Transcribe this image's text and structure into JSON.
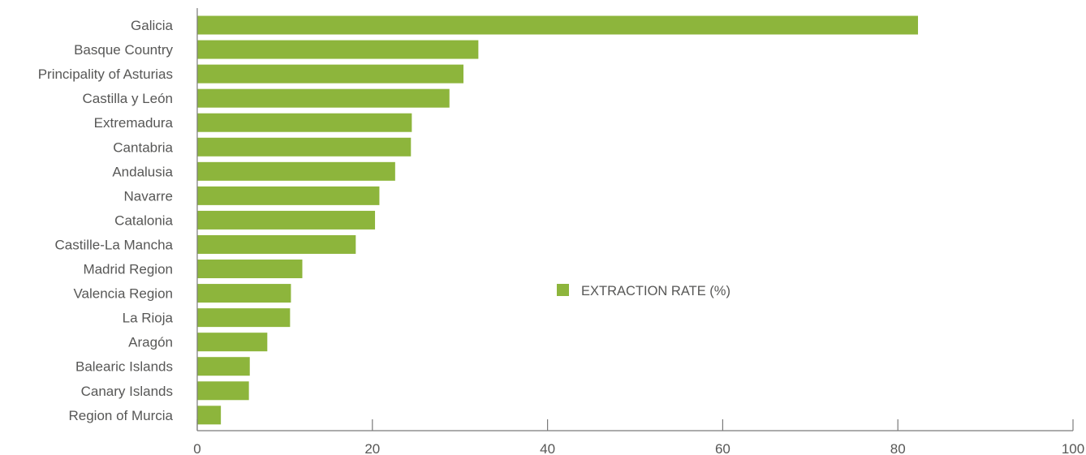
{
  "chart_data": {
    "type": "bar",
    "orientation": "horizontal",
    "categories": [
      "Galicia",
      "Basque Country",
      "Principality of Asturias",
      "Castilla y León",
      "Extremadura",
      "Cantabria",
      "Andalusia",
      "Navarre",
      "Catalonia",
      "Castille-La Mancha",
      "Madrid Region",
      "Valencia Region",
      "La Rioja",
      "Aragón",
      "Balearic Islands",
      "Canary Islands",
      "Region of Murcia"
    ],
    "series": [
      {
        "name": "EXTRACTION RATE (%)",
        "values": [
          82.3,
          32.1,
          30.4,
          28.8,
          24.5,
          24.4,
          22.6,
          20.8,
          20.3,
          18.1,
          12.0,
          10.7,
          10.6,
          8.0,
          6.0,
          5.9,
          2.7
        ]
      }
    ],
    "xlim": [
      0,
      100
    ],
    "xticks": [
      0,
      20,
      40,
      60,
      80,
      100
    ],
    "title": "",
    "xlabel": "",
    "ylabel": "",
    "grid": false,
    "legend_position": "center-right",
    "bar_color": "#8db53c",
    "axis_color": "#7a7a7a",
    "text_color": "#575756"
  }
}
